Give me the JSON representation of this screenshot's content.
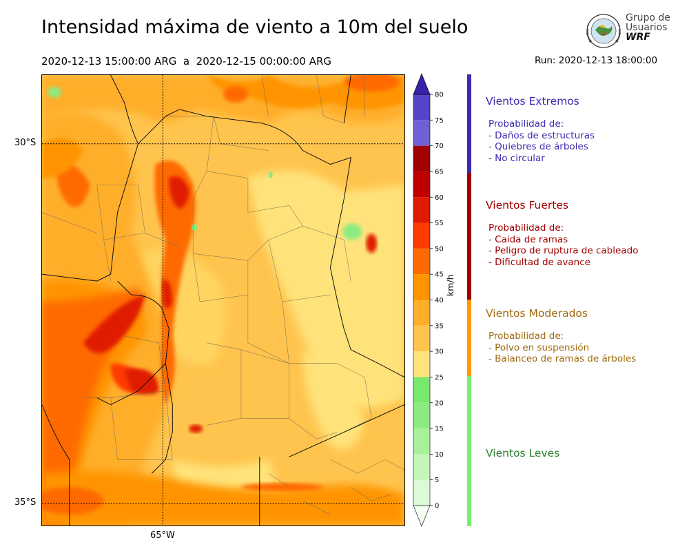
{
  "header": {
    "title": "Intensidad máxima de viento a 10m del suelo",
    "period": "2020-12-13 15:00:00 ARG  a  2020-12-15 00:00:00 ARG",
    "run": "Run: 2020-12-13 18:00:00"
  },
  "logo": {
    "line1": "Grupo de",
    "line2": "Usuarios",
    "line3": "WRF"
  },
  "map": {
    "lat_labels": [
      "30°S",
      "35°S"
    ],
    "lon_labels": [
      "65°W"
    ]
  },
  "colorbar": {
    "unit": "km/h",
    "ticks": [
      "0",
      "5",
      "10",
      "15",
      "20",
      "25",
      "30",
      "35",
      "40",
      "45",
      "50",
      "55",
      "60",
      "65",
      "70",
      "75",
      "80"
    ],
    "colors": [
      "#f3fdf0",
      "#dcfad5",
      "#c4f6b8",
      "#a7f19a",
      "#8aec80",
      "#77e96c",
      "#ffe37a",
      "#ffc44d",
      "#ffae2a",
      "#ff9400",
      "#ff6a00",
      "#ff3b00",
      "#e01a00",
      "#c00000",
      "#a00000",
      "#7060d8",
      "#5544c8",
      "#3f2ab4",
      "#3a1fa8"
    ]
  },
  "categories": [
    {
      "title": "Vientos Extremos",
      "color": "#3a2bb0",
      "desc": [
        "Probabilidad de:",
        "- Daños de estructuras",
        "- Quiebres de árboles",
        "- No circular"
      ]
    },
    {
      "title": "Vientos Fuertes",
      "color": "#a00000",
      "desc": [
        "Probabilidad de:",
        "- Caida de ramas",
        "- Peligro de ruptura de cableado",
        "- Dificultad de avance"
      ]
    },
    {
      "title": "Vientos Moderados",
      "color": "#a06a10",
      "desc": [
        "Probabilidad de:",
        "- Polvo en suspensión",
        "- Balanceo de ramas de árboles"
      ]
    },
    {
      "title": "Vientos Leves",
      "color": "#2e7d32",
      "desc": []
    }
  ]
}
